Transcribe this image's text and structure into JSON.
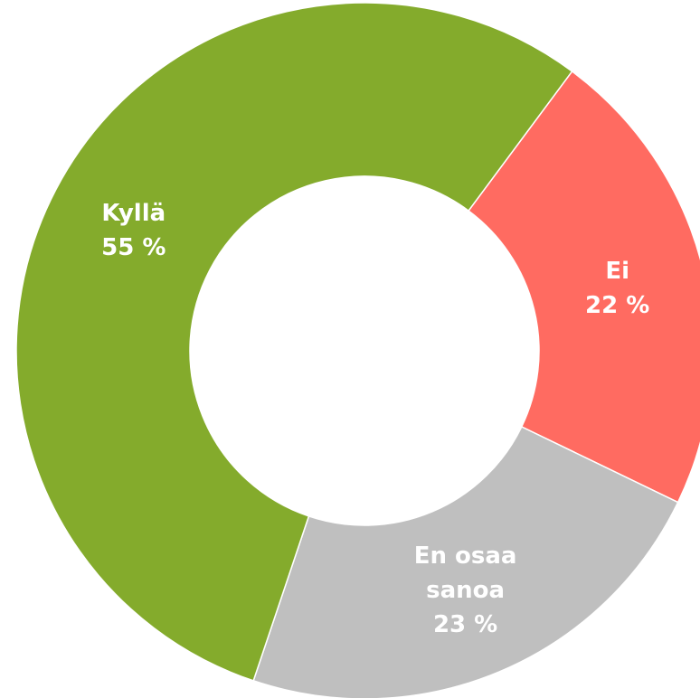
{
  "chart_data": {
    "type": "donut",
    "categories": [
      "Ei",
      "En osaa sanoa",
      "Kyllä"
    ],
    "values": [
      22,
      23,
      55
    ],
    "value_labels": [
      "22 %",
      "23 %",
      "55 %"
    ],
    "colors": [
      "#ff6b61",
      "#bfbfbf",
      "#84ab2c"
    ]
  }
}
